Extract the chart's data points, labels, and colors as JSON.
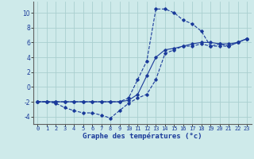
{
  "title": "Graphe des températures (°c)",
  "background_color": "#ceeaea",
  "grid_color": "#aacfcf",
  "line_color": "#1a3a9a",
  "xlim": [
    -0.5,
    23.5
  ],
  "ylim": [
    -5,
    11.5
  ],
  "xticks": [
    0,
    1,
    2,
    3,
    4,
    5,
    6,
    7,
    8,
    9,
    10,
    11,
    12,
    13,
    14,
    15,
    16,
    17,
    18,
    19,
    20,
    21,
    22,
    23
  ],
  "yticks": [
    -4,
    -2,
    0,
    2,
    4,
    6,
    8,
    10
  ],
  "series": [
    {
      "x": [
        0,
        1,
        2,
        3,
        4,
        5,
        6,
        7,
        8,
        9,
        10,
        11,
        12,
        13,
        14,
        15,
        16,
        17,
        18,
        19,
        20,
        21,
        22,
        23
      ],
      "y": [
        -2,
        -2,
        -2.2,
        -2.8,
        -3.2,
        -3.5,
        -3.5,
        -3.8,
        -4.2,
        -3.2,
        -2.2,
        -1.5,
        -1,
        1,
        4.5,
        5,
        5.5,
        5.5,
        5.8,
        5.5,
        5.5,
        5.5,
        6,
        6.5
      ],
      "style": "dashed"
    },
    {
      "x": [
        0,
        1,
        2,
        3,
        4,
        5,
        6,
        7,
        8,
        9,
        10,
        11,
        12,
        13,
        14,
        15,
        16,
        17,
        18,
        19,
        20,
        21,
        22,
        23
      ],
      "y": [
        -2,
        -2,
        -2,
        -2,
        -2,
        -2,
        -2,
        -2,
        -2,
        -2,
        -1.8,
        -1,
        1.5,
        4,
        5,
        5.2,
        5.5,
        5.8,
        6,
        6,
        5.8,
        5.8,
        6,
        6.5
      ],
      "style": "solid"
    },
    {
      "x": [
        0,
        1,
        2,
        3,
        4,
        5,
        6,
        7,
        8,
        9,
        10,
        11,
        12,
        13,
        14,
        15,
        16,
        17,
        18,
        19,
        20,
        21,
        22,
        23
      ],
      "y": [
        -2,
        -2,
        -2,
        -2,
        -2,
        -2,
        -2,
        -2,
        -2,
        -2,
        -1.5,
        1,
        3.5,
        10.5,
        10.5,
        10,
        9,
        8.5,
        7.5,
        5.5,
        5.8,
        5.5,
        6,
        6.5
      ],
      "style": "dashed"
    }
  ]
}
